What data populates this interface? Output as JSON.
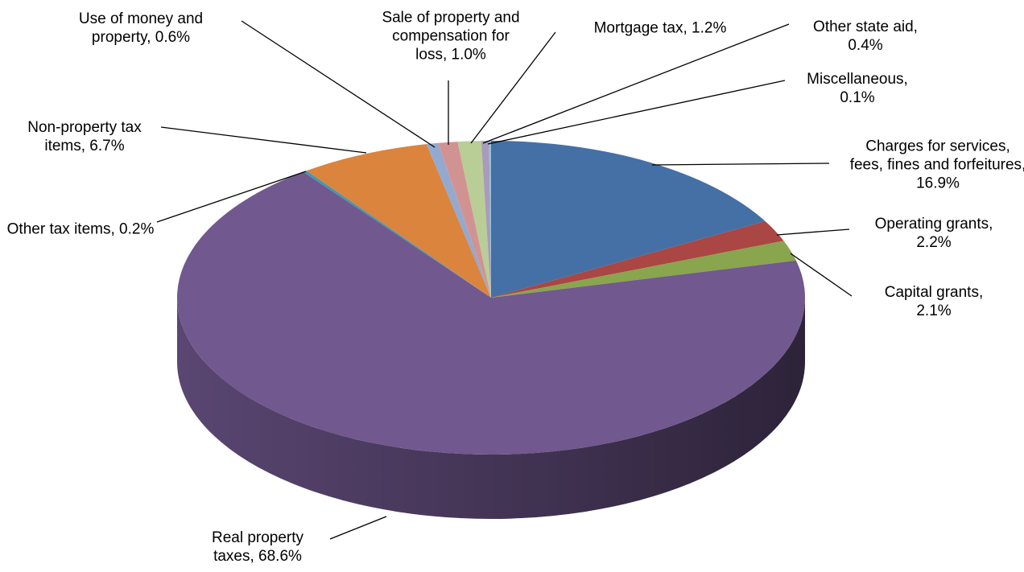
{
  "chart_data": {
    "type": "pie3d",
    "categories": [
      "Charges for services, fees, fines and forfeitures, 16.9%",
      "Operating grants, 2.2%",
      "Capital grants, 2.1%",
      "Real property taxes, 68.6%",
      "Other tax items, 0.2%",
      "Non-property tax items, 6.7%",
      "Use of money and property, 0.6%",
      "Sale of property and compensation for loss, 1.0%",
      "Mortgage tax, 1.2%",
      "Other state aid, 0.4%",
      "Miscellaneous, 0.1%"
    ],
    "values": [
      16.9,
      2.2,
      2.1,
      68.6,
      0.2,
      6.7,
      0.6,
      1.0,
      1.2,
      0.4,
      0.1
    ],
    "colors": [
      "#4570a6",
      "#aa4643",
      "#89a54e",
      "#71588f",
      "#4198af",
      "#db843d",
      "#93a9cf",
      "#d19392",
      "#b9cd96",
      "#a99bbd",
      "#91c3d5"
    ]
  }
}
